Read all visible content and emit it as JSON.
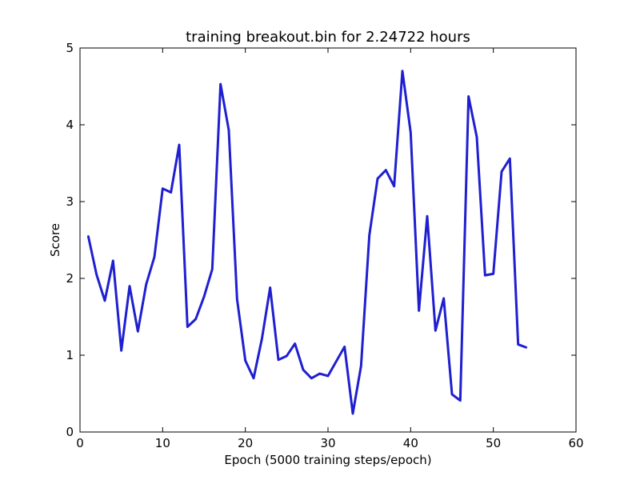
{
  "chart_data": {
    "type": "line",
    "title": "training breakout.bin for  2.24722 hours",
    "xlabel": "Epoch (5000 training steps/epoch)",
    "ylabel": "Score",
    "xlim": [
      0,
      60
    ],
    "ylim": [
      0,
      5
    ],
    "xticks": [
      0,
      10,
      20,
      30,
      40,
      50,
      60
    ],
    "yticks": [
      0,
      1,
      2,
      3,
      4,
      5
    ],
    "grid": false,
    "series": [
      {
        "color": "#1f1fd0",
        "x": [
          1,
          2,
          3,
          4,
          5,
          6,
          7,
          8,
          9,
          10,
          11,
          12,
          13,
          14,
          15,
          16,
          17,
          18,
          19,
          20,
          21,
          22,
          23,
          24,
          25,
          26,
          27,
          28,
          29,
          30,
          31,
          32,
          33,
          34,
          35,
          36,
          37,
          38,
          39,
          40,
          41,
          42,
          43,
          44,
          45,
          46,
          47,
          48,
          49,
          50,
          51,
          52,
          53,
          54
        ],
        "y": [
          2.55,
          2.05,
          1.71,
          2.23,
          1.06,
          1.9,
          1.31,
          1.92,
          2.28,
          3.17,
          3.12,
          3.74,
          1.37,
          1.47,
          1.76,
          2.12,
          4.53,
          3.93,
          1.73,
          0.93,
          0.7,
          1.21,
          1.88,
          0.94,
          0.99,
          1.15,
          0.81,
          0.7,
          0.76,
          0.73,
          0.92,
          1.11,
          0.24,
          0.86,
          2.56,
          3.3,
          3.41,
          3.2,
          4.7,
          3.9,
          1.58,
          2.81,
          1.32,
          1.74,
          0.49,
          0.41,
          4.37,
          3.84,
          2.04,
          2.06,
          3.39,
          3.56,
          1.14,
          1.1
        ]
      }
    ]
  }
}
